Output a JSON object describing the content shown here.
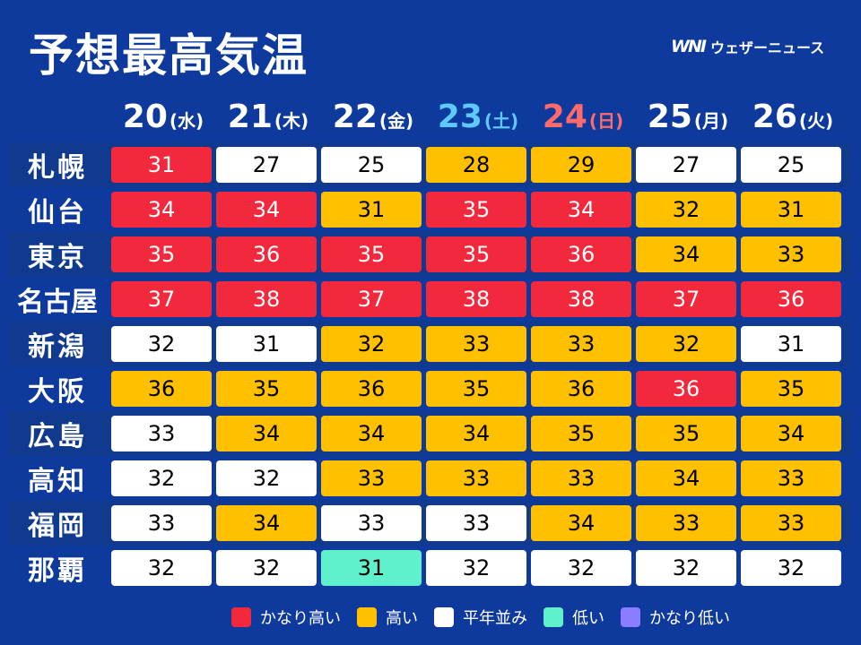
{
  "title": "予想最高気温",
  "logo": {
    "mark": "WNI",
    "text": "ウェザーニュース"
  },
  "dates": [
    {
      "num": "20",
      "weekday": "(水)",
      "kind": "weekday"
    },
    {
      "num": "21",
      "weekday": "(木)",
      "kind": "weekday"
    },
    {
      "num": "22",
      "weekday": "(金)",
      "kind": "weekday"
    },
    {
      "num": "23",
      "weekday": "(土)",
      "kind": "sat"
    },
    {
      "num": "24",
      "weekday": "(日)",
      "kind": "sun"
    },
    {
      "num": "25",
      "weekday": "(月)",
      "kind": "weekday"
    },
    {
      "num": "26",
      "weekday": "(火)",
      "kind": "weekday"
    }
  ],
  "rows": [
    {
      "city": "札幌",
      "temps": [
        "31",
        "27",
        "25",
        "28",
        "29",
        "27",
        "25"
      ],
      "levels": [
        "vh",
        "n",
        "n",
        "h",
        "h",
        "n",
        "n"
      ]
    },
    {
      "city": "仙台",
      "temps": [
        "34",
        "34",
        "31",
        "35",
        "34",
        "32",
        "31"
      ],
      "levels": [
        "vh",
        "vh",
        "h",
        "vh",
        "vh",
        "h",
        "h"
      ]
    },
    {
      "city": "東京",
      "temps": [
        "35",
        "36",
        "35",
        "35",
        "36",
        "34",
        "33"
      ],
      "levels": [
        "vh",
        "vh",
        "vh",
        "vh",
        "vh",
        "h",
        "h"
      ]
    },
    {
      "city": "名古屋",
      "temps": [
        "37",
        "38",
        "37",
        "38",
        "38",
        "37",
        "36"
      ],
      "levels": [
        "vh",
        "vh",
        "vh",
        "vh",
        "vh",
        "vh",
        "vh"
      ]
    },
    {
      "city": "新潟",
      "temps": [
        "32",
        "31",
        "32",
        "33",
        "33",
        "32",
        "31"
      ],
      "levels": [
        "n",
        "n",
        "h",
        "h",
        "h",
        "h",
        "n"
      ]
    },
    {
      "city": "大阪",
      "temps": [
        "36",
        "35",
        "36",
        "35",
        "36",
        "36",
        "35"
      ],
      "levels": [
        "h",
        "h",
        "h",
        "h",
        "h",
        "vh",
        "h"
      ]
    },
    {
      "city": "広島",
      "temps": [
        "33",
        "34",
        "34",
        "34",
        "35",
        "35",
        "34"
      ],
      "levels": [
        "n",
        "h",
        "h",
        "h",
        "h",
        "h",
        "h"
      ]
    },
    {
      "city": "高知",
      "temps": [
        "32",
        "32",
        "33",
        "33",
        "33",
        "34",
        "33"
      ],
      "levels": [
        "n",
        "n",
        "h",
        "h",
        "h",
        "h",
        "h"
      ]
    },
    {
      "city": "福岡",
      "temps": [
        "33",
        "34",
        "33",
        "33",
        "34",
        "33",
        "33"
      ],
      "levels": [
        "n",
        "h",
        "n",
        "n",
        "h",
        "h",
        "h"
      ]
    },
    {
      "city": "那覇",
      "temps": [
        "32",
        "32",
        "31",
        "32",
        "32",
        "32",
        "32"
      ],
      "levels": [
        "n",
        "n",
        "l",
        "n",
        "n",
        "n",
        "n"
      ]
    }
  ],
  "legend": [
    {
      "label": "かなり高い",
      "color": "#f2283c"
    },
    {
      "label": "高い",
      "color": "#ffc000"
    },
    {
      "label": "平年並み",
      "color": "#ffffff"
    },
    {
      "label": "低い",
      "color": "#5ff0cc"
    },
    {
      "label": "かなり低い",
      "color": "#8c7cff"
    }
  ]
}
